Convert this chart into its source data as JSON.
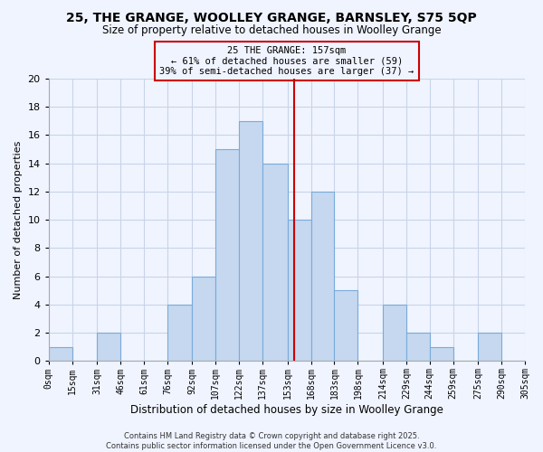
{
  "title": "25, THE GRANGE, WOOLLEY GRANGE, BARNSLEY, S75 5QP",
  "subtitle": "Size of property relative to detached houses in Woolley Grange",
  "xlabel": "Distribution of detached houses by size in Woolley Grange",
  "ylabel": "Number of detached properties",
  "bin_edges": [
    0,
    15,
    31,
    46,
    61,
    76,
    92,
    107,
    122,
    137,
    153,
    168,
    183,
    198,
    214,
    229,
    244,
    259,
    275,
    290,
    305
  ],
  "bin_labels": [
    "0sqm",
    "15sqm",
    "31sqm",
    "46sqm",
    "61sqm",
    "76sqm",
    "92sqm",
    "107sqm",
    "122sqm",
    "137sqm",
    "153sqm",
    "168sqm",
    "183sqm",
    "198sqm",
    "214sqm",
    "229sqm",
    "244sqm",
    "259sqm",
    "275sqm",
    "290sqm",
    "305sqm"
  ],
  "counts": [
    1,
    0,
    2,
    0,
    0,
    4,
    6,
    15,
    17,
    14,
    10,
    12,
    5,
    0,
    4,
    2,
    1,
    0,
    2,
    0
  ],
  "bar_color": "#c5d8ef",
  "bar_edge_color": "#7aabda",
  "grid_color": "#c8d4e8",
  "reference_line_x": 157,
  "reference_line_color": "#cc0000",
  "annotation_box_title": "25 THE GRANGE: 157sqm",
  "annotation_line1": "← 61% of detached houses are smaller (59)",
  "annotation_line2": "39% of semi-detached houses are larger (37) →",
  "annotation_box_color": "#cc0000",
  "ylim": [
    0,
    20
  ],
  "yticks": [
    0,
    2,
    4,
    6,
    8,
    10,
    12,
    14,
    16,
    18,
    20
  ],
  "footer_line1": "Contains HM Land Registry data © Crown copyright and database right 2025.",
  "footer_line2": "Contains public sector information licensed under the Open Government Licence v3.0.",
  "background_color": "#f0f4ff"
}
